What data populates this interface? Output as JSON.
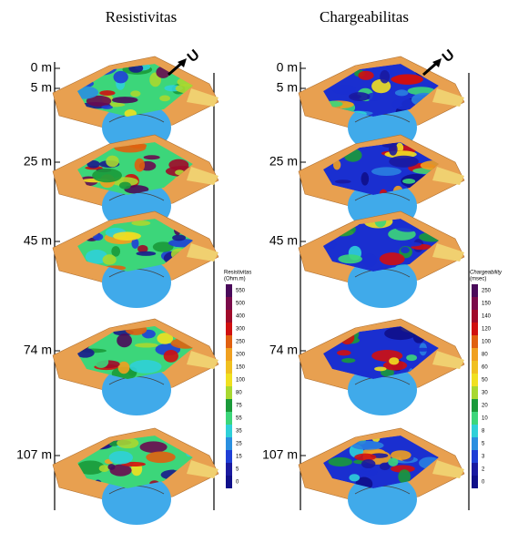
{
  "panels": [
    {
      "title": "Resistivitas",
      "depth_labels": [
        "0 m",
        "5 m",
        "25 m",
        "45 m",
        "74 m",
        "107 m"
      ],
      "north_label": "U",
      "colorbar": {
        "title": "Resistivitas",
        "unit": "(Ohm.m)",
        "ticks": [
          "550",
          "500",
          "400",
          "300",
          "250",
          "200",
          "150",
          "100",
          "80",
          "75",
          "55",
          "35",
          "25",
          "15",
          "5",
          "0"
        ]
      }
    },
    {
      "title": "Chargeabilitas",
      "depth_labels": [
        "0 m",
        "5 m",
        "25 m",
        "45 m",
        "74 m",
        "107 m"
      ],
      "north_label": "U",
      "colorbar": {
        "title": "Chargeability",
        "unit": "(msec)",
        "ticks": [
          "250",
          "150",
          "140",
          "120",
          "100",
          "80",
          "60",
          "50",
          "30",
          "20",
          "10",
          "8",
          "5",
          "3",
          "2",
          "0"
        ]
      }
    }
  ]
}
